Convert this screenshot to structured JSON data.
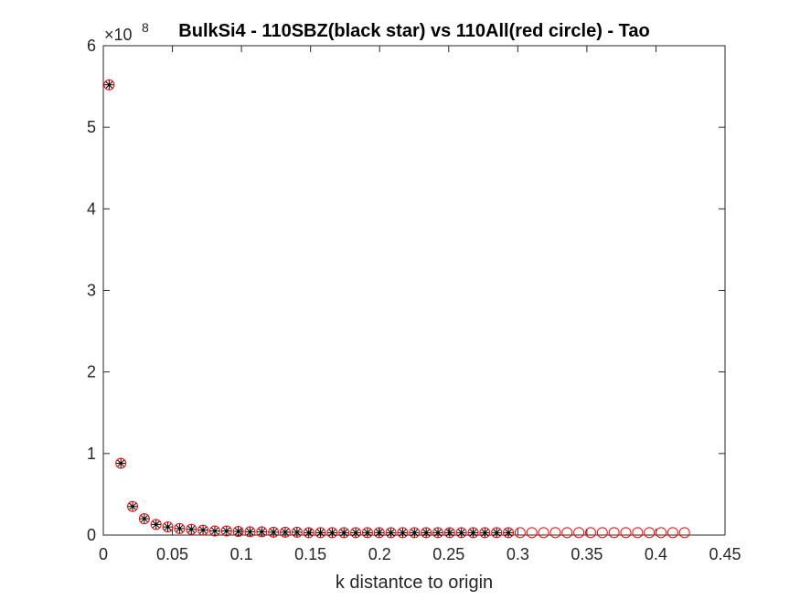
{
  "chart_data": {
    "type": "scatter",
    "title": "BulkSi4 - 110SBZ(black star) vs 110All(red circle) - Tao",
    "xlabel": "k distantce to origin",
    "ylabel": "",
    "y_multiplier_label": "×10",
    "y_multiplier_exponent": "8",
    "xlim": [
      0,
      0.45
    ],
    "ylim": [
      0,
      6
    ],
    "x_ticks": [
      0,
      0.05,
      0.1,
      0.15,
      0.2,
      0.25,
      0.3,
      0.35,
      0.4,
      0.45
    ],
    "x_tick_labels": [
      "0",
      "0.05",
      "0.1",
      "0.15",
      "0.2",
      "0.25",
      "0.3",
      "0.35",
      "0.4",
      "0.45"
    ],
    "y_ticks": [
      0,
      1,
      2,
      3,
      4,
      5,
      6
    ],
    "y_tick_labels": [
      "0",
      "1",
      "2",
      "3",
      "4",
      "5",
      "6"
    ],
    "grid": false,
    "box": true,
    "series": [
      {
        "marker": "circle",
        "color": "#ff0000",
        "x": [
          0.0042,
          0.0127,
          0.0212,
          0.0297,
          0.0382,
          0.0467,
          0.0552,
          0.0637,
          0.0722,
          0.0807,
          0.0892,
          0.0977,
          0.1062,
          0.1147,
          0.1232,
          0.1317,
          0.1402,
          0.1487,
          0.1572,
          0.1657,
          0.1742,
          0.1827,
          0.1912,
          0.1997,
          0.2082,
          0.2167,
          0.2252,
          0.2337,
          0.2422,
          0.2507,
          0.2592,
          0.2677,
          0.2762,
          0.2847,
          0.2932,
          0.3017,
          0.3102,
          0.3187,
          0.3272,
          0.3357,
          0.3442,
          0.3527,
          0.3612,
          0.3697,
          0.3782,
          0.3867,
          0.3952,
          0.4037,
          0.4122,
          0.4207
        ],
        "y": [
          5.52,
          0.88,
          0.35,
          0.2,
          0.13,
          0.1,
          0.08,
          0.07,
          0.06,
          0.05,
          0.05,
          0.045,
          0.04,
          0.04,
          0.035,
          0.035,
          0.035,
          0.03,
          0.03,
          0.03,
          0.03,
          0.03,
          0.03,
          0.03,
          0.03,
          0.03,
          0.03,
          0.03,
          0.03,
          0.03,
          0.03,
          0.03,
          0.03,
          0.03,
          0.03,
          0.03,
          0.03,
          0.03,
          0.03,
          0.03,
          0.03,
          0.03,
          0.03,
          0.03,
          0.03,
          0.03,
          0.03,
          0.03,
          0.03,
          0.03
        ]
      },
      {
        "marker": "star",
        "color": "#000000",
        "x": [
          0.0042,
          0.0127,
          0.0212,
          0.0297,
          0.0382,
          0.0467,
          0.0552,
          0.0637,
          0.0722,
          0.0807,
          0.0892,
          0.0977,
          0.1062,
          0.1147,
          0.1232,
          0.1317,
          0.1402,
          0.1487,
          0.1572,
          0.1657,
          0.1742,
          0.1827,
          0.1912,
          0.1997,
          0.2082,
          0.2167,
          0.2252,
          0.2337,
          0.2422,
          0.2507,
          0.2592,
          0.2677,
          0.2762,
          0.2847,
          0.2932
        ],
        "y": [
          5.52,
          0.88,
          0.35,
          0.2,
          0.13,
          0.1,
          0.08,
          0.07,
          0.06,
          0.05,
          0.05,
          0.045,
          0.04,
          0.04,
          0.035,
          0.035,
          0.035,
          0.03,
          0.03,
          0.03,
          0.03,
          0.03,
          0.03,
          0.03,
          0.03,
          0.03,
          0.03,
          0.03,
          0.03,
          0.03,
          0.03,
          0.03,
          0.03,
          0.03,
          0.03
        ]
      }
    ]
  }
}
